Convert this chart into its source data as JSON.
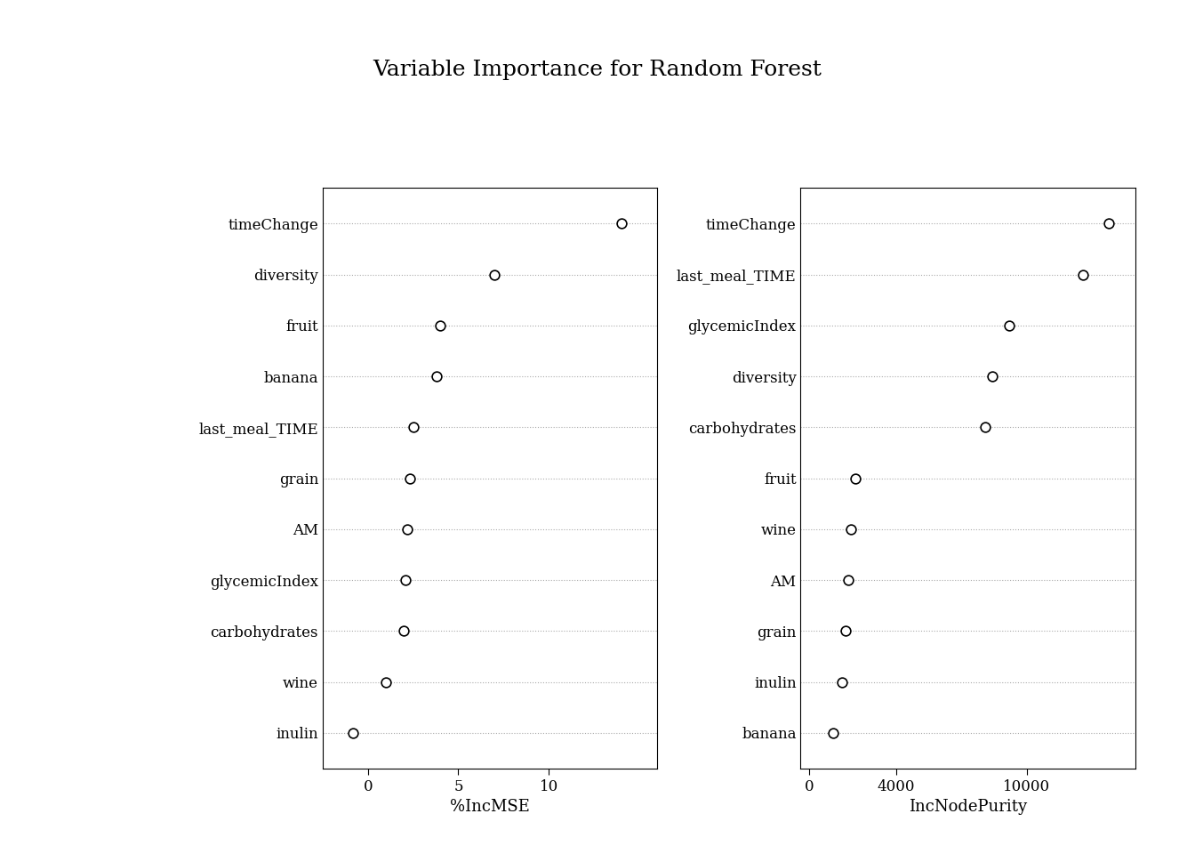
{
  "title": "Variable Importance for Random Forest",
  "title_fontsize": 18,
  "left_panel": {
    "xlabel": "%IncMSE",
    "variables": [
      "timeChange",
      "diversity",
      "fruit",
      "banana",
      "last_meal_TIME",
      "grain",
      "AM",
      "glycemicIndex",
      "carbohydrates",
      "wine",
      "inulin"
    ],
    "values": [
      14.0,
      7.0,
      4.0,
      3.8,
      2.5,
      2.3,
      2.2,
      2.1,
      2.0,
      1.0,
      -0.8
    ],
    "xlim": [
      -2.5,
      16
    ],
    "xticks": [
      0,
      5,
      10
    ],
    "xticklabels": [
      "0",
      "5",
      "10"
    ]
  },
  "right_panel": {
    "xlabel": "IncNodePurity",
    "variables": [
      "timeChange",
      "last_meal_TIME",
      "glycemicIndex",
      "diversity",
      "carbohydrates",
      "fruit",
      "wine",
      "AM",
      "grain",
      "inulin",
      "banana"
    ],
    "values": [
      13800,
      12600,
      9200,
      8400,
      8100,
      2100,
      1900,
      1800,
      1650,
      1500,
      1100
    ],
    "xlim": [
      -400,
      15000
    ],
    "xticks": [
      0,
      4000,
      10000
    ],
    "xticklabels": [
      "0",
      "4000",
      "10000"
    ]
  },
  "dot_size": 60,
  "dot_facecolor": "white",
  "dot_edgecolor": "black",
  "dot_linewidth": 1.2,
  "grid_color": "#aaaaaa",
  "grid_linestyle": ":",
  "grid_linewidth": 0.8,
  "xlabel_fontsize": 13,
  "tick_fontsize": 12,
  "label_fontsize": 12,
  "background_color": "white"
}
